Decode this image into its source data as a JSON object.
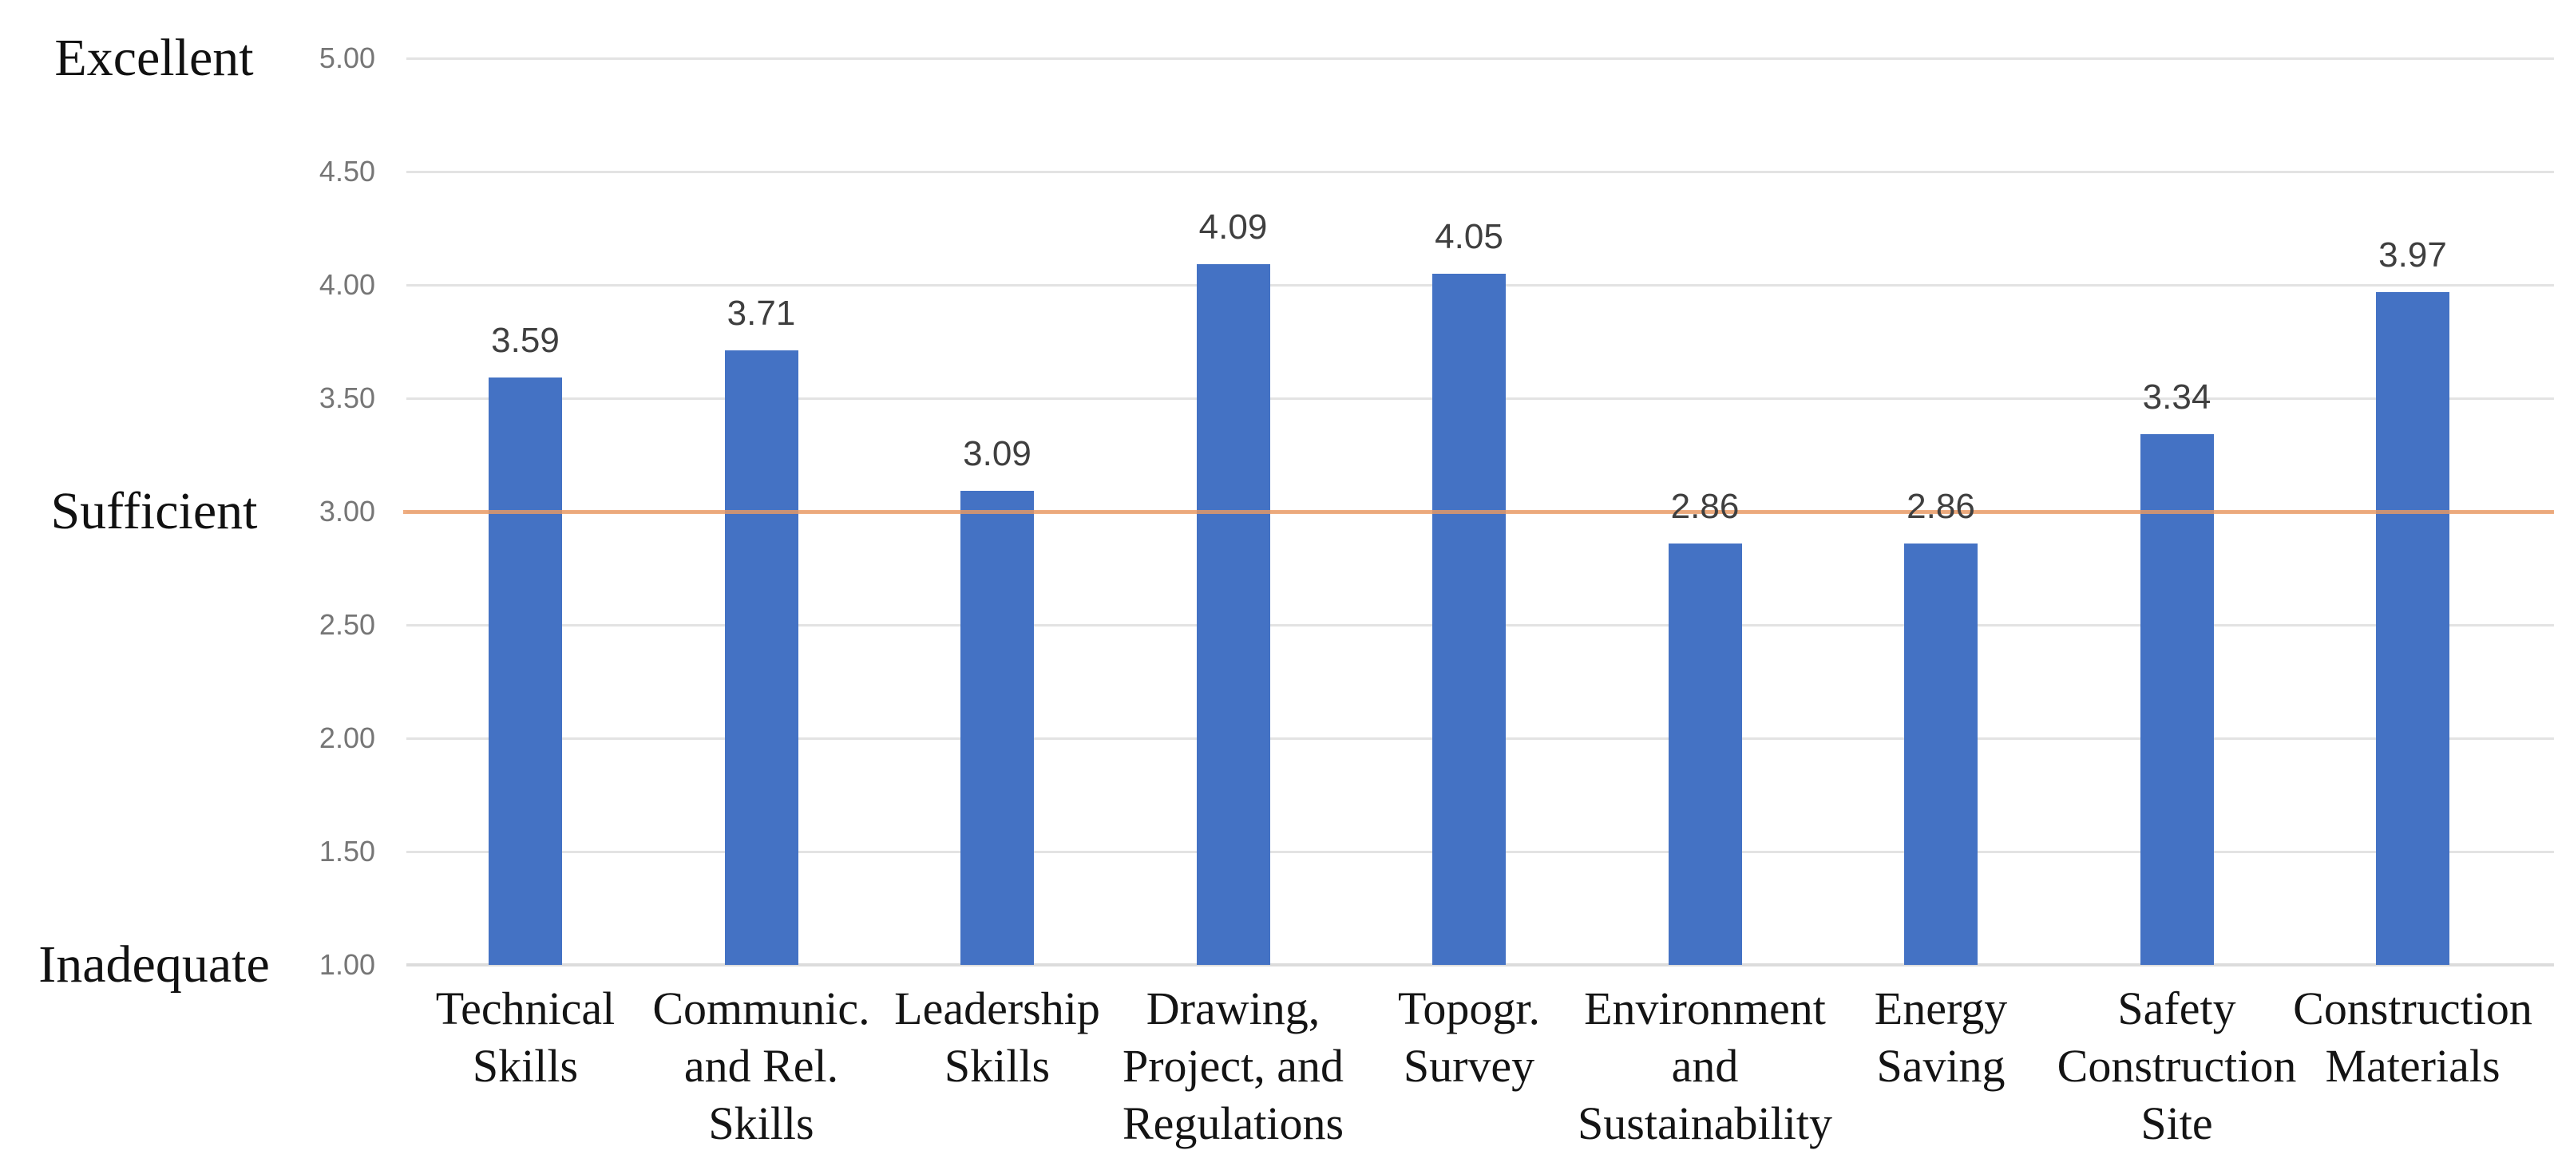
{
  "chart_data": {
    "type": "bar",
    "title": "",
    "legend": false,
    "grid": true,
    "bar_color": "#4472C4",
    "ylim": [
      1.0,
      5.0
    ],
    "yticks": [
      "5.00",
      "4.50",
      "4.00",
      "3.50",
      "3.00",
      "2.50",
      "2.00",
      "1.50",
      "1.00"
    ],
    "qualitative_axis_labels": [
      {
        "label": "Excellent",
        "value": 5.0
      },
      {
        "label": "Sufficient",
        "value": 3.0
      },
      {
        "label": "Inadequate",
        "value": 1.0
      }
    ],
    "reference_line": {
      "value": 3.0,
      "color": "#EB9A63"
    },
    "categories": [
      {
        "label": "Technical Skills",
        "lines": [
          "Technical",
          "Skills"
        ]
      },
      {
        "label": "Communic. and Rel. Skills",
        "lines": [
          "Communic.",
          "and Rel.",
          "Skills"
        ]
      },
      {
        "label": "Leadership Skills",
        "lines": [
          "Leadership",
          "Skills"
        ]
      },
      {
        "label": "Drawing, Project, and Regulations",
        "lines": [
          "Drawing,",
          "Project, and",
          "Regulations"
        ]
      },
      {
        "label": "Topogr. Survey",
        "lines": [
          "Topogr.",
          "Survey"
        ]
      },
      {
        "label": "Environment and Sustainability",
        "lines": [
          "Environment",
          "and",
          "Sustainability"
        ]
      },
      {
        "label": "Energy Saving",
        "lines": [
          "Energy",
          "Saving"
        ]
      },
      {
        "label": "Safety Construction Site",
        "lines": [
          "Safety",
          "Construction",
          "Site"
        ]
      },
      {
        "label": "Construction Materials",
        "lines": [
          "Construction",
          "Materials"
        ]
      }
    ],
    "values": [
      3.59,
      3.71,
      3.09,
      4.09,
      4.05,
      2.86,
      2.86,
      3.34,
      3.97
    ],
    "value_labels": [
      "3.59",
      "3.71",
      "3.09",
      "4.09",
      "4.05",
      "2.86",
      "2.86",
      "3.34",
      "3.97"
    ]
  }
}
